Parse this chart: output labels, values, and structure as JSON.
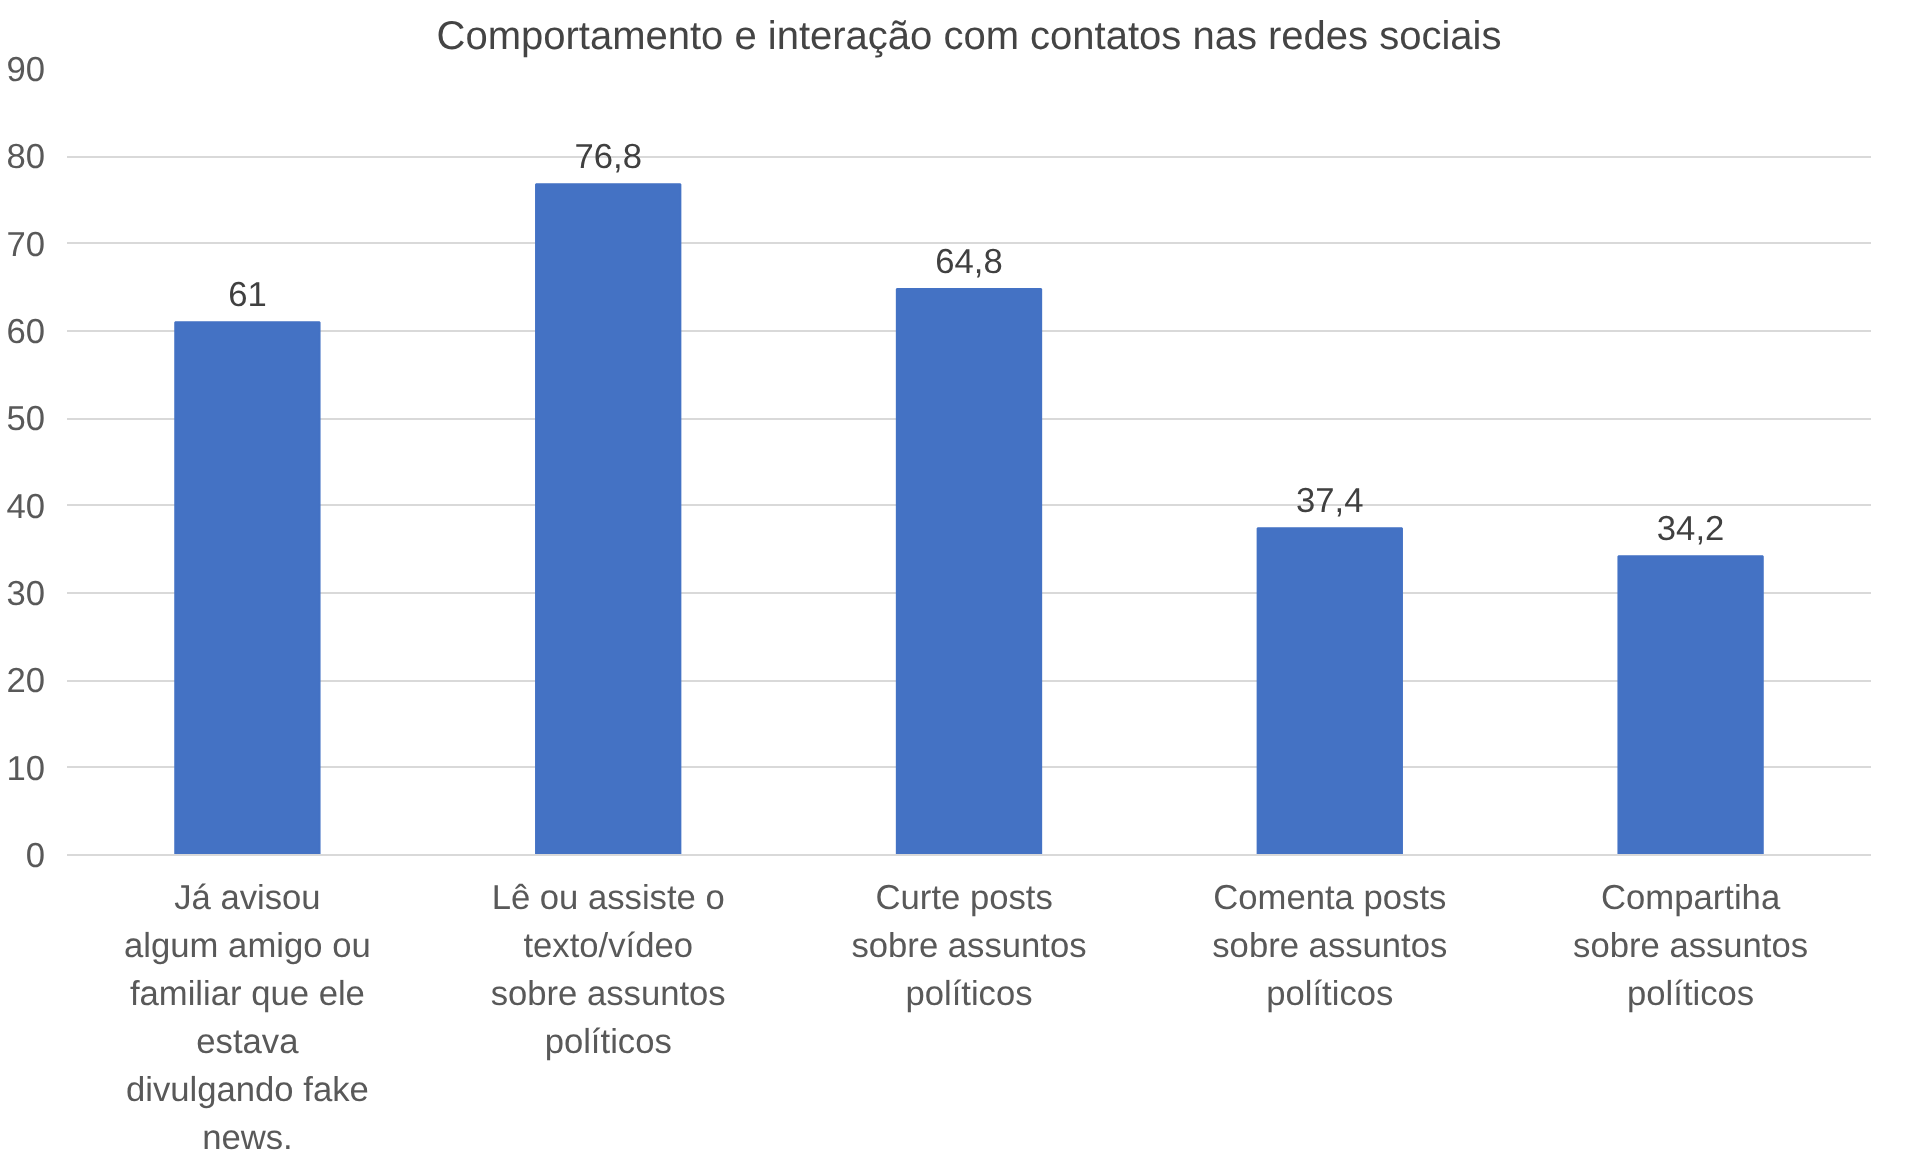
{
  "chart_data": {
    "type": "bar",
    "title": "Comportamento e interação com contatos nas redes sociais",
    "categories": [
      "Já avisou\nalgum amigo ou\nfamiliar que ele\nestava\ndivulgando fake\nnews.",
      "Lê ou assiste o\ntexto/vídeo\nsobre assuntos\npolíticos",
      "Curte  posts\nsobre assuntos\npolíticos",
      "Comenta posts\nsobre assuntos\npolíticos",
      "Compartiha\nsobre assuntos\npolíticos"
    ],
    "values": [
      61,
      76.8,
      64.8,
      37.4,
      34.2
    ],
    "value_labels": [
      "61",
      "76,8",
      "64,8",
      "37,4",
      "34,2"
    ],
    "color": "#4472c4",
    "ylim": [
      0,
      90
    ],
    "yticks": [
      0,
      10,
      20,
      30,
      40,
      50,
      60,
      70,
      80,
      90
    ],
    "grid": "y"
  }
}
